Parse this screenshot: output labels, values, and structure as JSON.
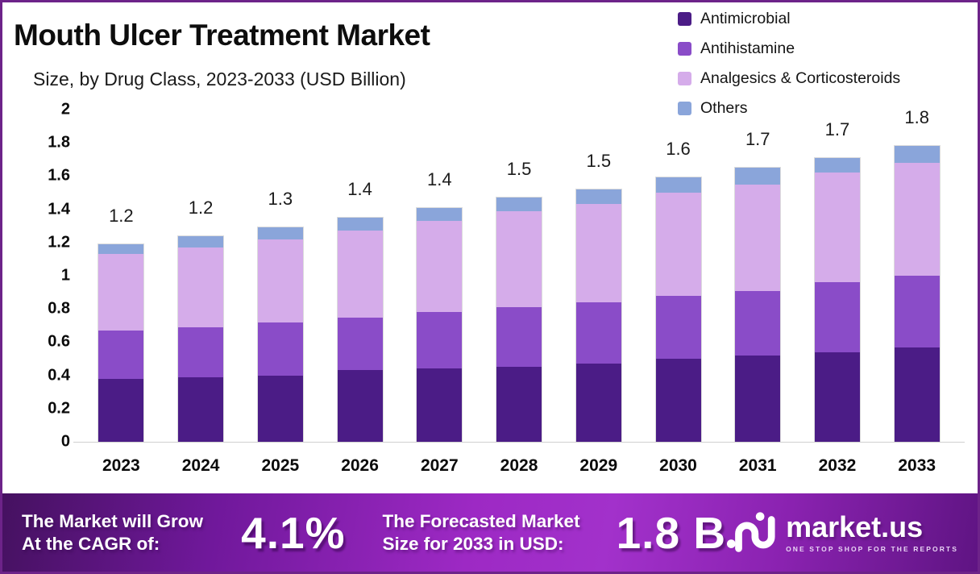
{
  "header": {
    "title": "Mouth Ulcer Treatment Market",
    "subtitle": "Size, by Drug Class, 2023-2033 (USD Billion)"
  },
  "legend": {
    "items": [
      {
        "label": "Antimicrobial",
        "color": "#4b1c86"
      },
      {
        "label": "Antihistamine",
        "color": "#8a4cc8"
      },
      {
        "label": "Analgesics & Corticosteroids",
        "color": "#d5acea"
      },
      {
        "label": "Others",
        "color": "#8aa5da"
      }
    ]
  },
  "chart_data": {
    "type": "bar",
    "stacked": true,
    "title": "Mouth Ulcer Treatment Market Size, by Drug Class, 2023-2033 (USD Billion)",
    "unit": "USD Billion",
    "categories": [
      "2023",
      "2024",
      "2025",
      "2026",
      "2027",
      "2028",
      "2029",
      "2030",
      "2031",
      "2032",
      "2033"
    ],
    "series": [
      {
        "name": "Antimicrobial",
        "color": "#4b1c86",
        "values": [
          0.38,
          0.39,
          0.4,
          0.43,
          0.44,
          0.45,
          0.47,
          0.5,
          0.52,
          0.54,
          0.57
        ]
      },
      {
        "name": "Antihistamine",
        "color": "#8a4cc8",
        "values": [
          0.29,
          0.3,
          0.32,
          0.32,
          0.34,
          0.36,
          0.37,
          0.38,
          0.39,
          0.42,
          0.43
        ]
      },
      {
        "name": "Analgesics & Corticosteroids",
        "color": "#d5acea",
        "values": [
          0.46,
          0.48,
          0.5,
          0.52,
          0.55,
          0.58,
          0.59,
          0.62,
          0.64,
          0.66,
          0.68
        ]
      },
      {
        "name": "Others",
        "color": "#8aa5da",
        "values": [
          0.06,
          0.07,
          0.07,
          0.08,
          0.08,
          0.08,
          0.09,
          0.09,
          0.1,
          0.09,
          0.1
        ]
      }
    ],
    "totals_labels": [
      "1.2",
      "1.2",
      "1.3",
      "1.4",
      "1.4",
      "1.5",
      "1.5",
      "1.6",
      "1.7",
      "1.7",
      "1.8"
    ],
    "y_ticks": [
      "2",
      "1.8",
      "1.6",
      "1.4",
      "1.2",
      "1",
      "0.8",
      "0.6",
      "0.4",
      "0.2",
      "0"
    ],
    "ylim": [
      0,
      2
    ],
    "grid": false,
    "legend_position": "top-right"
  },
  "banner": {
    "cagr_text": [
      "The Market will Grow",
      "At the CAGR of:"
    ],
    "cagr_value": "4.1%",
    "forecast_text": [
      "The Forecasted Market",
      "Size for 2033 in USD:"
    ],
    "forecast_value": "1.8 B",
    "logo": {
      "wordmark": "market.us",
      "tagline": "ONE STOP SHOP FOR THE REPORTS"
    }
  }
}
